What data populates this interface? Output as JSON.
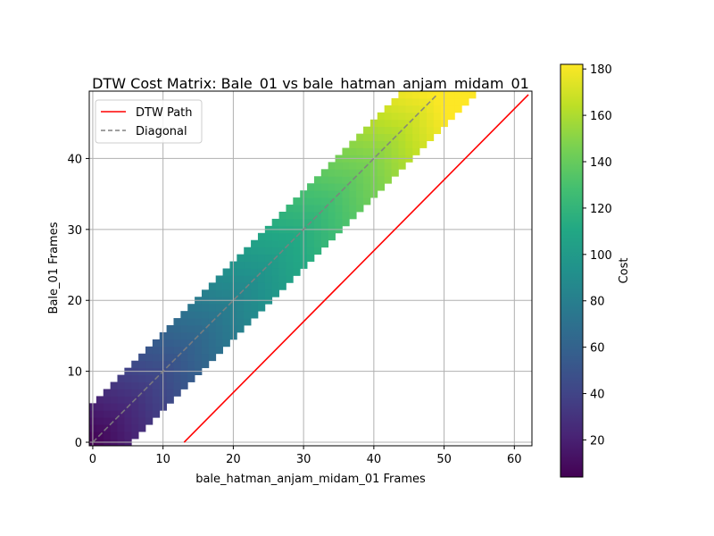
{
  "chart_data": {
    "type": "heatmap",
    "title": "DTW Cost Matrix: Bale_01 vs bale_hatman_anjam_midam_01",
    "xlabel": "bale_hatman_anjam_midam_01 Frames",
    "ylabel": "Bale_01 Frames",
    "xlim": [
      -0.5,
      62.5
    ],
    "ylim": [
      -0.5,
      49.5
    ],
    "xticks": [
      0,
      10,
      20,
      30,
      40,
      50,
      60
    ],
    "yticks": [
      0,
      10,
      20,
      30,
      40
    ],
    "grid": true,
    "colormap": "viridis",
    "colorbar": {
      "label": "Cost",
      "range": [
        4,
        182
      ],
      "ticks": [
        20,
        40,
        60,
        80,
        100,
        120,
        140,
        160,
        180
      ]
    },
    "matrix": {
      "band": "cells with |x - y| <= about 5.5 frames hold values; cells outside the band are blank",
      "cost_along_diagonal": [
        [
          0,
          4
        ],
        [
          10,
          45
        ],
        [
          20,
          82
        ],
        [
          30,
          115
        ],
        [
          40,
          148
        ],
        [
          49,
          182
        ]
      ]
    },
    "series": [
      {
        "name": "DTW Path",
        "color": "#ff0000",
        "style": "solid",
        "x": [
          13,
          62
        ],
        "y": [
          0,
          49
        ]
      },
      {
        "name": "Diagonal",
        "color": "#808080",
        "style": "dashed",
        "x": [
          0,
          49
        ],
        "y": [
          0,
          49
        ]
      }
    ],
    "legend": {
      "position": "upper-left",
      "entries": [
        "DTW Path",
        "Diagonal"
      ]
    }
  }
}
